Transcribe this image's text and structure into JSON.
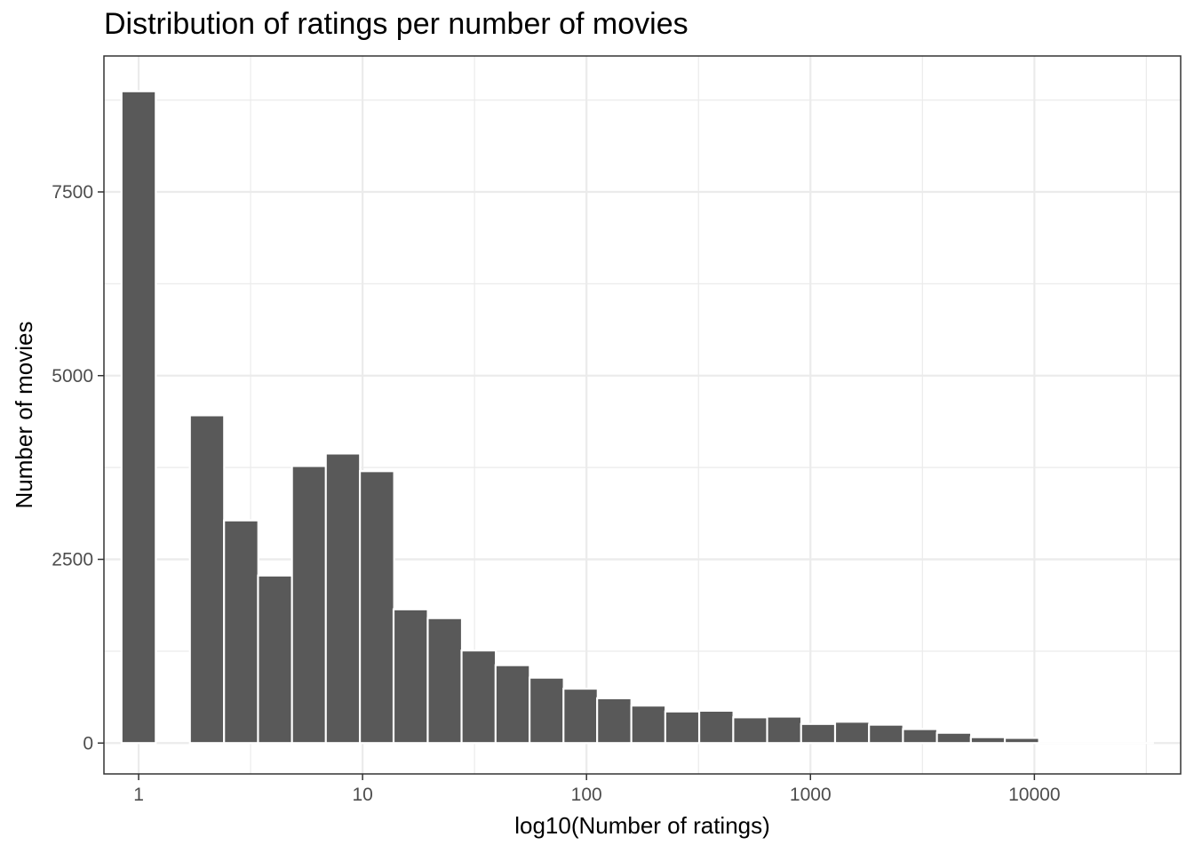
{
  "chart_data": {
    "type": "bar",
    "title": "Distribution of ratings per number of movies",
    "xlabel": "log10(Number of ratings)",
    "ylabel": "Number of movies",
    "x_scale": "log10",
    "xlim": [
      0.7,
      45000
    ],
    "ylim": [
      -420,
      9350
    ],
    "x_ticks": [
      1,
      10,
      100,
      1000,
      10000
    ],
    "x_tick_labels": [
      "1",
      "10",
      "100",
      "1000",
      "10000"
    ],
    "y_ticks": [
      0,
      2500,
      5000,
      7500
    ],
    "y_tick_labels": [
      "0",
      "2500",
      "5000",
      "7500"
    ],
    "bin_width_log10": 0.153,
    "series": [
      {
        "bin_centers": [
          1.0,
          2.02,
          2.87,
          4.07,
          5.77,
          8.17,
          11.6,
          16.4,
          23.3,
          33.0,
          46.8,
          66.4,
          94.1,
          133,
          189,
          268,
          380,
          539,
          764,
          1083,
          1536,
          2177,
          3087,
          4376,
          6204,
          8797
        ],
        "values": [
          8870,
          4460,
          3030,
          2280,
          3770,
          3940,
          3700,
          1820,
          1700,
          1260,
          1060,
          890,
          740,
          610,
          510,
          430,
          440,
          350,
          360,
          260,
          290,
          250,
          190,
          140,
          80,
          70
        ]
      }
    ],
    "colors": {
      "bar": "#595959",
      "panel_border": "#333333",
      "grid": "#ebebeb",
      "background": "#ffffff"
    },
    "grid": true,
    "legend": "none"
  }
}
